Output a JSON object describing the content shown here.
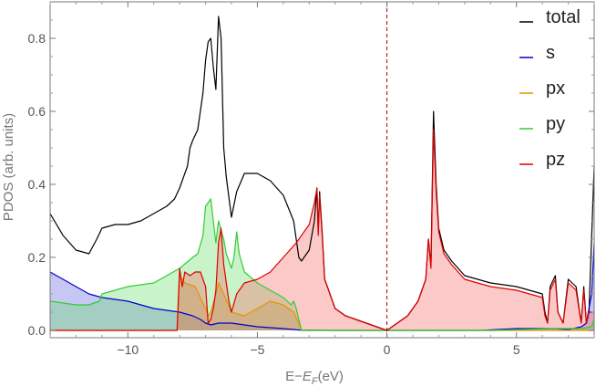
{
  "chart_data": {
    "type": "area",
    "title": "",
    "xlabel": "E−",
    "xlabel_sub_main": "E",
    "xlabel_sub": "F",
    "xlabel_unit": "(eV)",
    "ylabel": "PDOS (arb. units)",
    "xlim": [
      -13,
      8
    ],
    "ylim": [
      -0.02,
      0.9
    ],
    "xticks": [
      -10,
      -5,
      0,
      5
    ],
    "xtick_labels": [
      "−10",
      "−5",
      "0",
      "5"
    ],
    "yticks": [
      0.0,
      0.2,
      0.4,
      0.6,
      0.8
    ],
    "ytick_labels": [
      "0.0",
      "0.2",
      "0.4",
      "0.6",
      "0.8"
    ],
    "fermi_line_x": 0,
    "legend_position": "top-right",
    "series": [
      {
        "name": "total",
        "color": "#000000",
        "fill": false,
        "x": [
          -13,
          -12.5,
          -12,
          -11.5,
          -11.2,
          -11,
          -10.5,
          -10,
          -9.5,
          -9,
          -8.5,
          -8.2,
          -8,
          -7.7,
          -7.6,
          -7.5,
          -7.3,
          -7.1,
          -7.0,
          -6.9,
          -6.8,
          -6.7,
          -6.6,
          -6.5,
          -6.4,
          -6.3,
          -6.2,
          -6.0,
          -5.8,
          -5.5,
          -5.0,
          -4.5,
          -4.0,
          -3.6,
          -3.4,
          -3.3,
          -3.0,
          -2.8,
          -2.7,
          -2.65,
          -2.6,
          -2.5,
          -2.4,
          -2.3,
          -2.2,
          -2.0,
          -1.6,
          -1.2,
          -0.8,
          -0.4,
          0,
          0.4,
          0.8,
          1.2,
          1.5,
          1.6,
          1.7,
          1.8,
          1.9,
          2.0,
          2.2,
          2.5,
          3.0,
          4.0,
          5.0,
          6.0,
          6.1,
          6.2,
          6.3,
          6.5,
          6.6,
          6.8,
          7.0,
          7.3,
          7.5,
          7.6,
          7.7,
          7.8,
          8.0
        ],
        "values": [
          0.32,
          0.26,
          0.22,
          0.21,
          0.25,
          0.28,
          0.29,
          0.29,
          0.3,
          0.32,
          0.34,
          0.36,
          0.39,
          0.45,
          0.5,
          0.52,
          0.55,
          0.65,
          0.74,
          0.79,
          0.8,
          0.72,
          0.66,
          0.86,
          0.8,
          0.5,
          0.42,
          0.31,
          0.38,
          0.43,
          0.43,
          0.41,
          0.37,
          0.3,
          0.2,
          0.19,
          0.22,
          0.3,
          0.39,
          0.27,
          0.38,
          0.27,
          0.14,
          0.12,
          0.1,
          0.06,
          0.04,
          0.03,
          0.02,
          0.01,
          0.0,
          0.02,
          0.04,
          0.08,
          0.14,
          0.25,
          0.18,
          0.6,
          0.4,
          0.28,
          0.22,
          0.19,
          0.15,
          0.13,
          0.12,
          0.1,
          0.05,
          0.02,
          0.12,
          0.15,
          0.05,
          0.02,
          0.14,
          0.12,
          0.02,
          0.12,
          0.02,
          0.05,
          0.45
        ]
      },
      {
        "name": "s",
        "color": "#0000cc",
        "fill": true,
        "fillColor": "rgba(70,70,220,0.3)",
        "x": [
          -13,
          -12.5,
          -12,
          -11.5,
          -11,
          -10,
          -9,
          -8,
          -7.5,
          -7.2,
          -7.0,
          -6.8,
          -6.5,
          -6,
          -5,
          -4,
          -3.5,
          -3.4,
          -2,
          0,
          3.6,
          5.0,
          6.5,
          7.0,
          7.5,
          7.7,
          7.8,
          7.9,
          8.0
        ],
        "values": [
          0.16,
          0.14,
          0.12,
          0.1,
          0.09,
          0.08,
          0.06,
          0.05,
          0.04,
          0.03,
          0.02,
          0.015,
          0.02,
          0.02,
          0.01,
          0.005,
          0.002,
          0.001,
          0.0,
          0.0,
          0.0,
          0.005,
          0.005,
          0.002,
          0.01,
          0.02,
          0.06,
          0.1,
          0.24
        ]
      },
      {
        "name": "px",
        "color": "#e69500",
        "fill": true,
        "fillColor": "rgba(200,150,60,0.35)",
        "x": [
          -13,
          -8.1,
          -8.0,
          -7.8,
          -7.4,
          -7.0,
          -6.9,
          -6.8,
          -6.6,
          -6.5,
          -6.3,
          -6.0,
          -5.5,
          -5.0,
          -4.5,
          -4.0,
          -3.6,
          -3.4,
          -3.3,
          8.0
        ],
        "values": [
          0.0,
          0.0,
          0.15,
          0.13,
          0.12,
          0.06,
          0.04,
          0.05,
          0.1,
          0.13,
          0.1,
          0.05,
          0.04,
          0.06,
          0.08,
          0.07,
          0.05,
          0.02,
          0.0,
          0.0
        ]
      },
      {
        "name": "py",
        "color": "#33cc33",
        "fill": true,
        "fillColor": "rgba(100,220,100,0.35)",
        "x": [
          -13,
          -12,
          -11.5,
          -11.1,
          -11,
          -10,
          -9,
          -8.5,
          -8.0,
          -7.5,
          -7.3,
          -7.1,
          -7.0,
          -6.8,
          -6.6,
          -6.5,
          -6.3,
          -6.2,
          -6.0,
          -5.9,
          -5.8,
          -5.7,
          -5.5,
          -5.0,
          -4.5,
          -4.0,
          -3.7,
          -3.6,
          -3.5,
          -3.4,
          -3.3,
          0,
          4.0,
          6.5,
          7.5,
          7.9,
          8.0
        ],
        "values": [
          0.08,
          0.07,
          0.07,
          0.08,
          0.1,
          0.12,
          0.13,
          0.15,
          0.17,
          0.2,
          0.21,
          0.26,
          0.34,
          0.36,
          0.24,
          0.3,
          0.25,
          0.21,
          0.17,
          0.2,
          0.27,
          0.21,
          0.16,
          0.13,
          0.11,
          0.09,
          0.07,
          0.08,
          0.06,
          0.03,
          0.0,
          0.0,
          0.0,
          0.005,
          0.005,
          0.01,
          0.03
        ]
      },
      {
        "name": "pz",
        "color": "#dd0000",
        "fill": true,
        "fillColor": "rgba(245,100,100,0.35)",
        "x": [
          -13,
          -8.1,
          -8.0,
          -7.9,
          -7.8,
          -7.6,
          -7.4,
          -7.2,
          -7.0,
          -6.9,
          -6.8,
          -6.7,
          -6.6,
          -6.5,
          -6.4,
          -6.3,
          -6.1,
          -6.0,
          -5.8,
          -5.5,
          -5.0,
          -4.5,
          -4.0,
          -3.5,
          -3.0,
          -2.8,
          -2.7,
          -2.65,
          -2.6,
          -2.5,
          -2.4,
          -2.3,
          -2.2,
          -2.0,
          -1.6,
          -1.2,
          -0.8,
          -0.4,
          0,
          0.4,
          0.8,
          1.2,
          1.5,
          1.6,
          1.7,
          1.8,
          1.9,
          2.0,
          2.2,
          2.5,
          3.0,
          4.0,
          5.0,
          6.0,
          6.1,
          6.2,
          6.3,
          6.5,
          6.6,
          6.8,
          7.0,
          7.3,
          7.5,
          7.6,
          7.7,
          7.8,
          8.0
        ],
        "values": [
          0.0,
          0.0,
          0.17,
          0.12,
          0.16,
          0.15,
          0.16,
          0.16,
          0.12,
          0.02,
          0.03,
          0.06,
          0.11,
          0.24,
          0.28,
          0.18,
          0.08,
          0.05,
          0.1,
          0.13,
          0.14,
          0.16,
          0.2,
          0.24,
          0.29,
          0.35,
          0.39,
          0.26,
          0.37,
          0.26,
          0.14,
          0.12,
          0.1,
          0.06,
          0.04,
          0.03,
          0.02,
          0.01,
          0.0,
          0.02,
          0.04,
          0.08,
          0.14,
          0.25,
          0.17,
          0.55,
          0.38,
          0.27,
          0.21,
          0.18,
          0.14,
          0.12,
          0.11,
          0.09,
          0.04,
          0.02,
          0.11,
          0.14,
          0.05,
          0.02,
          0.13,
          0.11,
          0.02,
          0.11,
          0.02,
          0.05,
          0.05
        ]
      }
    ]
  }
}
